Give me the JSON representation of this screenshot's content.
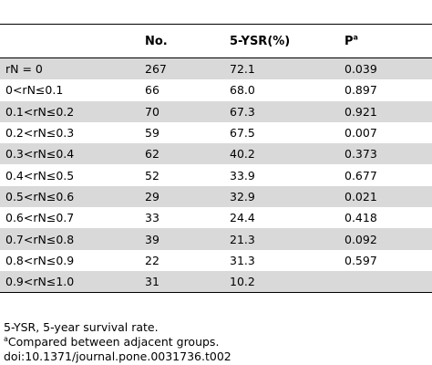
{
  "table": {
    "headers": {
      "col1": "",
      "col2": "No.",
      "col3": "5-YSR(%)",
      "col4_main": "P",
      "col4_sup": "a"
    },
    "rows": [
      {
        "label": "rN = 0",
        "no": "267",
        "ysr": "72.1",
        "p": "0.039"
      },
      {
        "label": "0<rN≤0.1",
        "no": "66",
        "ysr": "68.0",
        "p": "0.897"
      },
      {
        "label": "0.1<rN≤0.2",
        "no": "70",
        "ysr": "67.3",
        "p": "0.921"
      },
      {
        "label": "0.2<rN≤0.3",
        "no": "59",
        "ysr": "67.5",
        "p": "0.007"
      },
      {
        "label": "0.3<rN≤0.4",
        "no": "62",
        "ysr": "40.2",
        "p": "0.373"
      },
      {
        "label": "0.4<rN≤0.5",
        "no": "52",
        "ysr": "33.9",
        "p": "0.677"
      },
      {
        "label": "0.5<rN≤0.6",
        "no": "29",
        "ysr": "32.9",
        "p": "0.021"
      },
      {
        "label": "0.6<rN≤0.7",
        "no": "33",
        "ysr": "24.4",
        "p": "0.418"
      },
      {
        "label": "0.7<rN≤0.8",
        "no": "39",
        "ysr": "21.3",
        "p": "0.092"
      },
      {
        "label": "0.8<rN≤0.9",
        "no": "22",
        "ysr": "31.3",
        "p": "0.597"
      },
      {
        "label": "0.9<rN≤1.0",
        "no": "31",
        "ysr": "10.2",
        "p": ""
      }
    ]
  },
  "notes": {
    "abbrev": "5-YSR, 5-year survival rate.",
    "footnote_sup": "a",
    "footnote": "Compared between adjacent groups.",
    "doi": "doi:10.1371/journal.pone.0031736.t002"
  },
  "colors": {
    "shade": "#d9d9d9",
    "rule": "#000000"
  }
}
